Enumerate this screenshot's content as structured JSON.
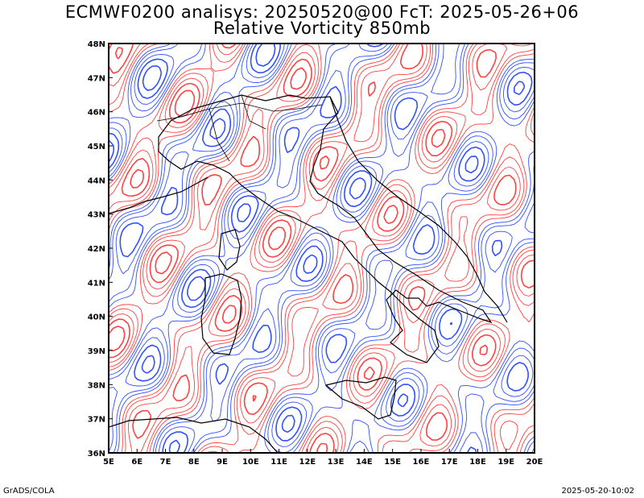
{
  "title": {
    "line1": "ECMWF0200 analisys: 20250520@00 FcT: 2025-05-26+06",
    "line2": "Relative Vorticity 850mb"
  },
  "axes": {
    "lon_labels": [
      "5E",
      "6E",
      "7E",
      "8E",
      "9E",
      "10E",
      "11E",
      "12E",
      "13E",
      "14E",
      "15E",
      "16E",
      "17E",
      "18E",
      "19E",
      "20E"
    ],
    "lat_labels": [
      "36N",
      "37N",
      "38N",
      "39N",
      "40N",
      "41N",
      "42N",
      "43N",
      "44N",
      "45N",
      "46N",
      "47N",
      "48N"
    ],
    "lon_range": [
      5,
      20
    ],
    "lat_range": [
      36,
      48
    ]
  },
  "field": {
    "name": "Relative Vorticity 850mb",
    "positive_color": "#ff4040",
    "negative_color": "#3050ff",
    "coast_color": "#000000"
  },
  "footer": {
    "left": "GrADS/COLA",
    "right": "2025-05-20-10:02"
  }
}
